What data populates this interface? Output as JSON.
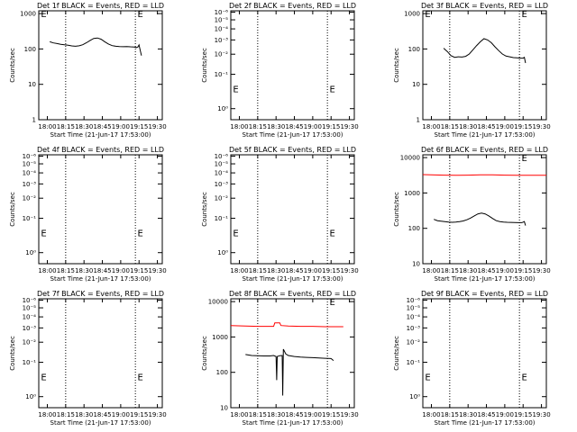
{
  "chart_data": [
    {
      "type": "line",
      "title": "Det 1f BLACK = Events, RED = LLD",
      "xlabel": "Start Time (21-Jun-17 17:53:00)",
      "ylabel": "Counts/sec",
      "x_ticks": [
        "18:00",
        "18:15",
        "18:30",
        "18:45",
        "19:00",
        "19:15",
        "19:30"
      ],
      "x_tick_minutes": [
        0,
        15,
        30,
        45,
        60,
        75,
        90
      ],
      "xlim": [
        -7,
        94
      ],
      "yscale": "log",
      "y_ticks": [
        "1",
        "10",
        "100",
        "1000"
      ],
      "y_tick_values": [
        1,
        10,
        100,
        1000
      ],
      "ylim": [
        1,
        1200
      ],
      "vlines_minutes": [
        15,
        72
      ],
      "markers": [
        {
          "text": "E",
          "x": -6,
          "y": 1000
        },
        {
          "text": "E",
          "x": 73,
          "y": 1000
        }
      ],
      "series": [
        {
          "color": "#000000",
          "x": [
            2,
            5,
            8,
            11,
            14,
            17,
            20,
            23,
            26,
            29,
            32,
            35,
            38,
            41,
            44,
            47,
            50,
            53,
            56,
            59,
            62,
            65,
            68,
            71,
            73,
            74,
            75,
            76,
            77
          ],
          "y": [
            160,
            148,
            142,
            136,
            131,
            128,
            122,
            119,
            123,
            132,
            150,
            175,
            198,
            205,
            188,
            160,
            138,
            124,
            119,
            117,
            116,
            117,
            115,
            114,
            110,
            114,
            130,
            90,
            65
          ]
        },
        {
          "color": "#ff0000",
          "x": [],
          "y": []
        }
      ]
    },
    {
      "type": "line",
      "title": "Det 2f BLACK = Events, RED = LLD",
      "xlabel": "Start Time (21-Jun-17 17:53:00)",
      "ylabel": "Counts/sec",
      "x_ticks": [
        "18:00",
        "18:15",
        "18:30",
        "18:45",
        "19:00",
        "19:15",
        "19:30"
      ],
      "x_tick_minutes": [
        0,
        15,
        30,
        45,
        60,
        75,
        90
      ],
      "xlim": [
        -7,
        94
      ],
      "yscale": "log",
      "y_ticks": [
        "10⁰",
        "10⁻¹",
        "10⁻²",
        "10⁻³",
        "10⁻⁴",
        "10⁻⁵",
        "10⁻⁶"
      ],
      "y_tick_values": [
        1,
        2,
        3,
        4,
        5,
        6,
        7
      ],
      "ylim": [
        0.8,
        7.2
      ],
      "vlines_minutes": [
        15,
        72
      ],
      "markers": [
        {
          "text": "E",
          "x": -6,
          "y": 1.5
        },
        {
          "text": "E",
          "x": 73,
          "y": 1.5
        }
      ],
      "series": [
        {
          "color": "#000000",
          "x": [],
          "y": []
        },
        {
          "color": "#ff0000",
          "x": [],
          "y": []
        }
      ]
    },
    {
      "type": "line",
      "title": "Det 3f BLACK = Events, RED = LLD",
      "xlabel": "Start Time (21-Jun-17 17:53:00)",
      "ylabel": "Counts/sec",
      "x_ticks": [
        "18:00",
        "18:15",
        "18:30",
        "18:45",
        "19:00",
        "19:15",
        "19:30"
      ],
      "x_tick_minutes": [
        0,
        15,
        30,
        45,
        60,
        75,
        90
      ],
      "xlim": [
        -7,
        94
      ],
      "yscale": "log",
      "y_ticks": [
        "1",
        "10",
        "100",
        "1000"
      ],
      "y_tick_values": [
        1,
        10,
        100,
        1000
      ],
      "ylim": [
        1,
        1200
      ],
      "vlines_minutes": [
        15,
        72
      ],
      "markers": [
        {
          "text": "E",
          "x": -6,
          "y": 1000
        },
        {
          "text": "E",
          "x": 73,
          "y": 1000
        }
      ],
      "series": [
        {
          "color": "#000000",
          "x": [
            10,
            13,
            16,
            19,
            22,
            25,
            28,
            31,
            34,
            37,
            40,
            43,
            46,
            49,
            52,
            55,
            58,
            61,
            64,
            67,
            70,
            73,
            75,
            76,
            77
          ],
          "y": [
            105,
            85,
            65,
            58,
            60,
            59,
            62,
            72,
            95,
            125,
            160,
            195,
            180,
            150,
            115,
            90,
            72,
            63,
            60,
            57,
            56,
            55,
            55,
            58,
            40
          ]
        },
        {
          "color": "#ff0000",
          "x": [],
          "y": []
        }
      ]
    },
    {
      "type": "line",
      "title": "Det 4f BLACK = Events, RED = LLD",
      "xlabel": "Start Time (21-Jun-17 17:53:00)",
      "ylabel": "Counts/sec",
      "x_ticks": [
        "18:00",
        "18:15",
        "18:30",
        "18:45",
        "19:00",
        "19:15",
        "19:30"
      ],
      "x_tick_minutes": [
        0,
        15,
        30,
        45,
        60,
        75,
        90
      ],
      "xlim": [
        -7,
        94
      ],
      "yscale": "log",
      "y_ticks": [
        "10⁰",
        "10⁻¹",
        "10⁻²",
        "10⁻³",
        "10⁻⁴",
        "10⁻⁵",
        "10⁻⁶"
      ],
      "y_tick_values": [
        1,
        2,
        3,
        4,
        5,
        6,
        7
      ],
      "ylim": [
        0.8,
        7.2
      ],
      "vlines_minutes": [
        15,
        72
      ],
      "markers": [
        {
          "text": "E",
          "x": -6,
          "y": 1.5
        },
        {
          "text": "E",
          "x": 73,
          "y": 1.5
        }
      ],
      "series": [
        {
          "color": "#000000",
          "x": [],
          "y": []
        },
        {
          "color": "#ff0000",
          "x": [],
          "y": []
        }
      ]
    },
    {
      "type": "line",
      "title": "Det 5f BLACK = Events, RED = LLD",
      "xlabel": "Start Time (21-Jun-17 17:53:00)",
      "ylabel": "Counts/sec",
      "x_ticks": [
        "18:00",
        "18:15",
        "18:30",
        "18:45",
        "19:00",
        "19:15",
        "19:30"
      ],
      "x_tick_minutes": [
        0,
        15,
        30,
        45,
        60,
        75,
        90
      ],
      "xlim": [
        -7,
        94
      ],
      "yscale": "log",
      "y_ticks": [
        "10⁰",
        "10⁻¹",
        "10⁻²",
        "10⁻³",
        "10⁻⁴",
        "10⁻⁵",
        "10⁻⁶"
      ],
      "y_tick_values": [
        1,
        2,
        3,
        4,
        5,
        6,
        7
      ],
      "ylim": [
        0.8,
        7.2
      ],
      "vlines_minutes": [
        15,
        72
      ],
      "markers": [
        {
          "text": "E",
          "x": -6,
          "y": 1.5
        },
        {
          "text": "E",
          "x": 73,
          "y": 1.5
        }
      ],
      "series": [
        {
          "color": "#000000",
          "x": [],
          "y": []
        },
        {
          "color": "#ff0000",
          "x": [],
          "y": []
        }
      ]
    },
    {
      "type": "line",
      "title": "Det 6f BLACK = Events, RED = LLD",
      "xlabel": "Start Time (21-Jun-17 17:53:00)",
      "ylabel": "Counts/sec",
      "x_ticks": [
        "18:00",
        "18:15",
        "18:30",
        "18:45",
        "19:00",
        "19:15",
        "19:30"
      ],
      "x_tick_minutes": [
        0,
        15,
        30,
        45,
        60,
        75,
        90
      ],
      "xlim": [
        -7,
        94
      ],
      "yscale": "log",
      "y_ticks": [
        "10",
        "100",
        "1000",
        "10000"
      ],
      "y_tick_values": [
        10,
        100,
        1000,
        10000
      ],
      "ylim": [
        10,
        12000
      ],
      "vlines_minutes": [
        15,
        72
      ],
      "markers": [
        {
          "text": "E",
          "x": 73,
          "y": 10000
        }
      ],
      "series": [
        {
          "color": "#000000",
          "x": [
            2,
            5,
            8,
            11,
            14,
            17,
            20,
            23,
            26,
            29,
            32,
            35,
            38,
            41,
            44,
            47,
            50,
            53,
            56,
            59,
            62,
            65,
            68,
            71,
            74,
            76,
            77
          ],
          "y": [
            180,
            165,
            160,
            155,
            150,
            148,
            150,
            155,
            162,
            175,
            195,
            225,
            255,
            270,
            255,
            225,
            190,
            165,
            155,
            150,
            148,
            147,
            146,
            145,
            145,
            155,
            120
          ]
        },
        {
          "color": "#ff0000",
          "x": [
            -7,
            0,
            10,
            20,
            30,
            40,
            50,
            60,
            70,
            80,
            94
          ],
          "y": [
            3300,
            3250,
            3200,
            3150,
            3200,
            3250,
            3250,
            3200,
            3150,
            3150,
            3150
          ]
        }
      ]
    },
    {
      "type": "line",
      "title": "Det 7f BLACK = Events, RED = LLD",
      "xlabel": "Start Time (21-Jun-17 17:53:00)",
      "ylabel": "Counts/sec",
      "x_ticks": [
        "18:00",
        "18:15",
        "18:30",
        "18:45",
        "19:00",
        "19:15",
        "19:30"
      ],
      "x_tick_minutes": [
        0,
        15,
        30,
        45,
        60,
        75,
        90
      ],
      "xlim": [
        -7,
        94
      ],
      "yscale": "log",
      "y_ticks": [
        "10⁰",
        "10⁻¹",
        "10⁻²",
        "10⁻³",
        "10⁻⁴",
        "10⁻⁵",
        "10⁻⁶"
      ],
      "y_tick_values": [
        1,
        2,
        3,
        4,
        5,
        6,
        7
      ],
      "ylim": [
        0.8,
        7.2
      ],
      "vlines_minutes": [
        15,
        72
      ],
      "markers": [
        {
          "text": "E",
          "x": -6,
          "y": 1.5
        },
        {
          "text": "E",
          "x": 73,
          "y": 1.5
        }
      ],
      "series": [
        {
          "color": "#000000",
          "x": [],
          "y": []
        },
        {
          "color": "#ff0000",
          "x": [],
          "y": []
        }
      ]
    },
    {
      "type": "line",
      "title": "Det 8f BLACK = Events, RED = LLD",
      "xlabel": "Start Time (21-Jun-17 17:53:00)",
      "ylabel": "Counts/sec",
      "x_ticks": [
        "18:00",
        "18:15",
        "18:30",
        "18:45",
        "19:00",
        "19:15",
        "19:30"
      ],
      "x_tick_minutes": [
        0,
        15,
        30,
        45,
        60,
        75,
        90
      ],
      "xlim": [
        -7,
        94
      ],
      "yscale": "log",
      "y_ticks": [
        "10",
        "100",
        "1000",
        "10000"
      ],
      "y_tick_values": [
        10,
        100,
        1000,
        10000
      ],
      "ylim": [
        10,
        12000
      ],
      "vlines_minutes": [
        15,
        72
      ],
      "markers": [
        {
          "text": "E",
          "x": 73,
          "y": 10000
        }
      ],
      "series": [
        {
          "color": "#000000",
          "x": [
            5,
            10,
            15,
            20,
            25,
            28,
            30,
            30.5,
            31,
            33,
            35,
            35.5,
            36,
            38,
            40,
            45,
            50,
            55,
            60,
            65,
            70,
            75,
            77
          ],
          "y": [
            320,
            300,
            295,
            290,
            290,
            300,
            280,
            60,
            280,
            295,
            300,
            22,
            450,
            330,
            300,
            280,
            270,
            265,
            260,
            255,
            250,
            245,
            215
          ]
        },
        {
          "color": "#ff0000",
          "x": [
            -7,
            5,
            15,
            25,
            28,
            29,
            33,
            34,
            40,
            50,
            60,
            70,
            80,
            85
          ],
          "y": [
            2100,
            2050,
            2000,
            2000,
            2000,
            2500,
            2500,
            2100,
            2050,
            2000,
            2000,
            1950,
            1950,
            1950
          ]
        }
      ]
    },
    {
      "type": "line",
      "title": "Det 9f BLACK = Events, RED = LLD",
      "xlabel": "Start Time (21-Jun-17 17:53:00)",
      "ylabel": "Counts/sec",
      "x_ticks": [
        "18:00",
        "18:15",
        "18:30",
        "18:45",
        "19:00",
        "19:15",
        "19:30"
      ],
      "x_tick_minutes": [
        0,
        15,
        30,
        45,
        60,
        75,
        90
      ],
      "xlim": [
        -7,
        94
      ],
      "yscale": "log",
      "y_ticks": [
        "10⁰",
        "10⁻¹",
        "10⁻²",
        "10⁻³",
        "10⁻⁴",
        "10⁻⁵",
        "10⁻⁶"
      ],
      "y_tick_values": [
        1,
        2,
        3,
        4,
        5,
        6,
        7
      ],
      "ylim": [
        0.8,
        7.2
      ],
      "vlines_minutes": [
        15,
        72
      ],
      "markers": [
        {
          "text": "E",
          "x": -6,
          "y": 1.5
        },
        {
          "text": "E",
          "x": 73,
          "y": 1.5
        }
      ],
      "series": [
        {
          "color": "#000000",
          "x": [],
          "y": []
        },
        {
          "color": "#ff0000",
          "x": [],
          "y": []
        }
      ]
    }
  ]
}
